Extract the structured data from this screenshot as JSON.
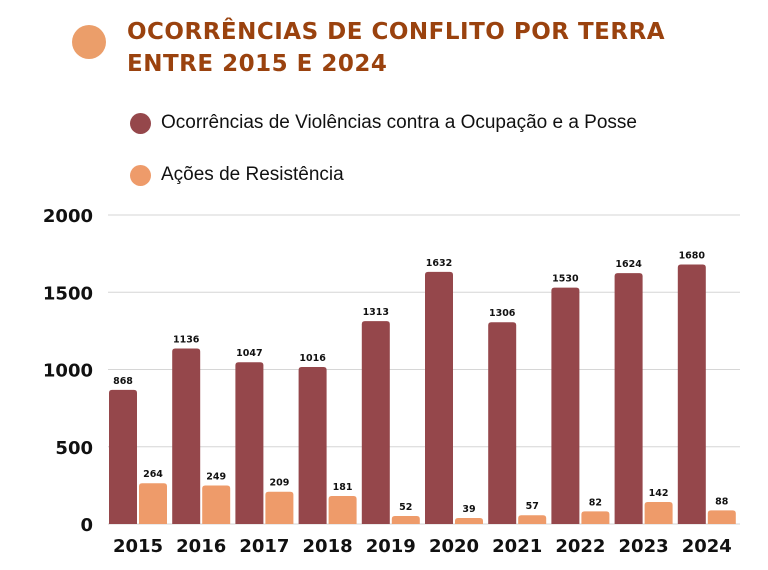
{
  "chart_data": {
    "type": "bar",
    "title": "OCORRÊNCIAS DE CONFLITO POR TERRA ENTRE 2015 E 2024",
    "title_lines": [
      "OCORRÊNCIAS DE CONFLITO POR TERRA",
      "ENTRE 2015 E 2024"
    ],
    "xlabel": "",
    "ylabel": "",
    "categories": [
      "2015",
      "2016",
      "2017",
      "2018",
      "2019",
      "2020",
      "2021",
      "2022",
      "2023",
      "2024"
    ],
    "series": [
      {
        "name": "Ocorrências de Violências contra a Ocupação e a Posse",
        "color": "#95474B",
        "values": [
          868,
          1136,
          1047,
          1016,
          1313,
          1632,
          1306,
          1530,
          1624,
          1680
        ]
      },
      {
        "name": "Ações de Resistência",
        "color": "#EE9B6A",
        "values": [
          264,
          249,
          209,
          181,
          52,
          39,
          57,
          82,
          142,
          88
        ]
      }
    ],
    "ylim": [
      0,
      2000
    ],
    "yticks": [
      "0",
      "500",
      "1000",
      "1500",
      "2000"
    ],
    "grid": true,
    "legend_position": "top-left",
    "title_color": "#9A420E",
    "title_dot_color": "#EB9E6A"
  }
}
